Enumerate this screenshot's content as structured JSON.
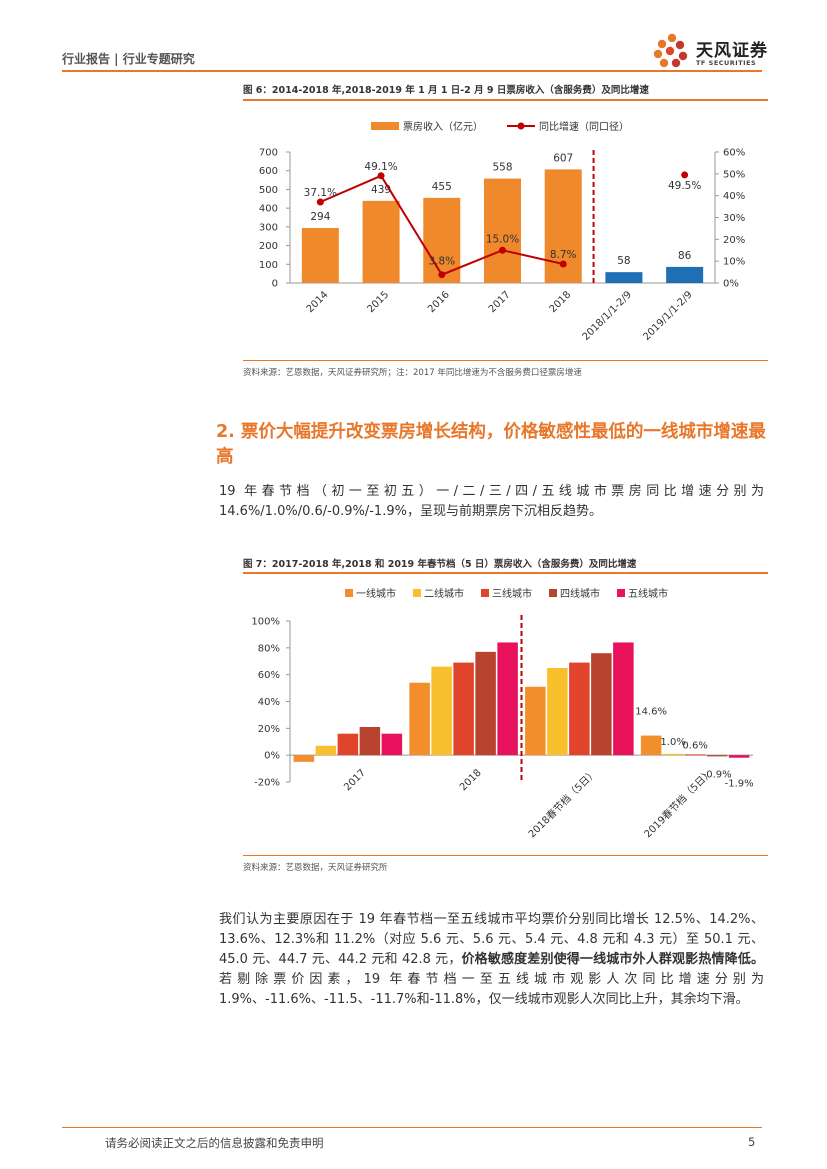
{
  "header": {
    "left": "行业报告 | 行业专题研究",
    "logo_cn": "天风证券",
    "logo_en": "TF SECURITIES"
  },
  "figure6": {
    "title": "图 6：2014-2018 年,2018-2019 年 1 月 1 日-2 月 9 日票房收入（含服务费）及同比增速",
    "source": "资料来源：艺恩数据，天风证券研究所；注：2017 年同比增速为不含服务费口径票房增速"
  },
  "section": {
    "title": "2. 票价大幅提升改变票房增长结构，价格敏感性最低的一线城市增速最高",
    "para1": "19 年春节档（初一至初五）一/二/三/四/五线城市票房同比增速分别为14.6%/1.0%/0.6/-0.9%/-1.9%，呈现与前期票房下沉相反趋势。"
  },
  "figure7": {
    "title": "图 7：2017-2018 年,2018 和 2019 年春节档（5 日）票房收入（含服务费）及同比增速",
    "source": "资料来源：艺恩数据，天风证券研究所"
  },
  "para2": {
    "part1": "我们认为主要原因在于 19 年春节档一至五线城市平均票价分别同比增长 12.5%、14.2%、13.6%、12.3%和 11.2%（对应 5.6 元、5.6 元、5.4 元、4.8 元和 4.3 元）至 50.1 元、45.0 元、44.7 元、44.2 元和 42.8 元，",
    "bold": "价格敏感度差别使得一线城市外人群观影热情降低。",
    "part2": "若剔除票价因素，19 年春节档一至五线城市观影人次同比增速分别为 1.9%、-11.6%、-11.5、-11.7%和-11.8%，仅一线城市观影人次同比上升，其余均下滑。"
  },
  "footer": {
    "disclaimer": "请务必阅读正文之后的信息披露和免责申明",
    "page": "5"
  },
  "colors": {
    "accent": "#e8772a",
    "bar_orange": "#f0892b",
    "bar_blue": "#1f6fb5",
    "line_red": "#c00000",
    "tier1": "#f28e2b",
    "tier2": "#f9c02e",
    "tier3": "#e0452b",
    "tier4": "#b8442f",
    "tier5": "#e8125c"
  },
  "chart_data": [
    {
      "type": "bar",
      "title": "",
      "categories": [
        "2014",
        "2015",
        "2016",
        "2017",
        "2018",
        "2018/1/1-2/9",
        "2019/1/1-2/9"
      ],
      "series": [
        {
          "name": "票房收入（亿元）",
          "values": [
            294,
            439,
            455,
            558,
            607,
            58,
            86
          ]
        },
        {
          "name": "同比增速（同口径）",
          "values": [
            37.1,
            49.1,
            3.8,
            15.0,
            8.7,
            null,
            49.5
          ]
        }
      ],
      "bar_labels": [
        "294",
        "439",
        "455",
        "558",
        "607",
        "58",
        "86"
      ],
      "line_labels": [
        "37.1%",
        "49.1%",
        "3.8%",
        "15.0%",
        "8.7%",
        "",
        "49.5%"
      ],
      "y_ticks": [
        "0",
        "100",
        "200",
        "300",
        "400",
        "500",
        "600",
        "700"
      ],
      "y2_ticks": [
        "0%",
        "10%",
        "20%",
        "30%",
        "40%",
        "50%",
        "60%"
      ],
      "ylim": [
        0,
        700
      ],
      "y2lim": [
        0,
        60
      ],
      "legend": "top-center",
      "grid": false
    },
    {
      "type": "bar",
      "title": "",
      "categories": [
        "2017",
        "2018",
        "2018春节档（5日）",
        "2019春节档（5日）"
      ],
      "series": [
        {
          "name": "一线城市",
          "values": [
            -5,
            54,
            51,
            14.6
          ]
        },
        {
          "name": "二线城市",
          "values": [
            7,
            66,
            65,
            1.0
          ]
        },
        {
          "name": "三线城市",
          "values": [
            16,
            69,
            69,
            0.6
          ]
        },
        {
          "name": "四线城市",
          "values": [
            21,
            77,
            76,
            -0.9
          ]
        },
        {
          "name": "五线城市",
          "values": [
            16,
            84,
            84,
            -1.9
          ]
        }
      ],
      "value_labels_2019": [
        "14.6%",
        "1.0%",
        "0.6%",
        "-0.9%",
        "-1.9%"
      ],
      "y_ticks": [
        "-20%",
        "0%",
        "20%",
        "40%",
        "60%",
        "80%",
        "100%"
      ],
      "ylim": [
        -20,
        100
      ],
      "legend": "top-center",
      "grid": false
    }
  ]
}
